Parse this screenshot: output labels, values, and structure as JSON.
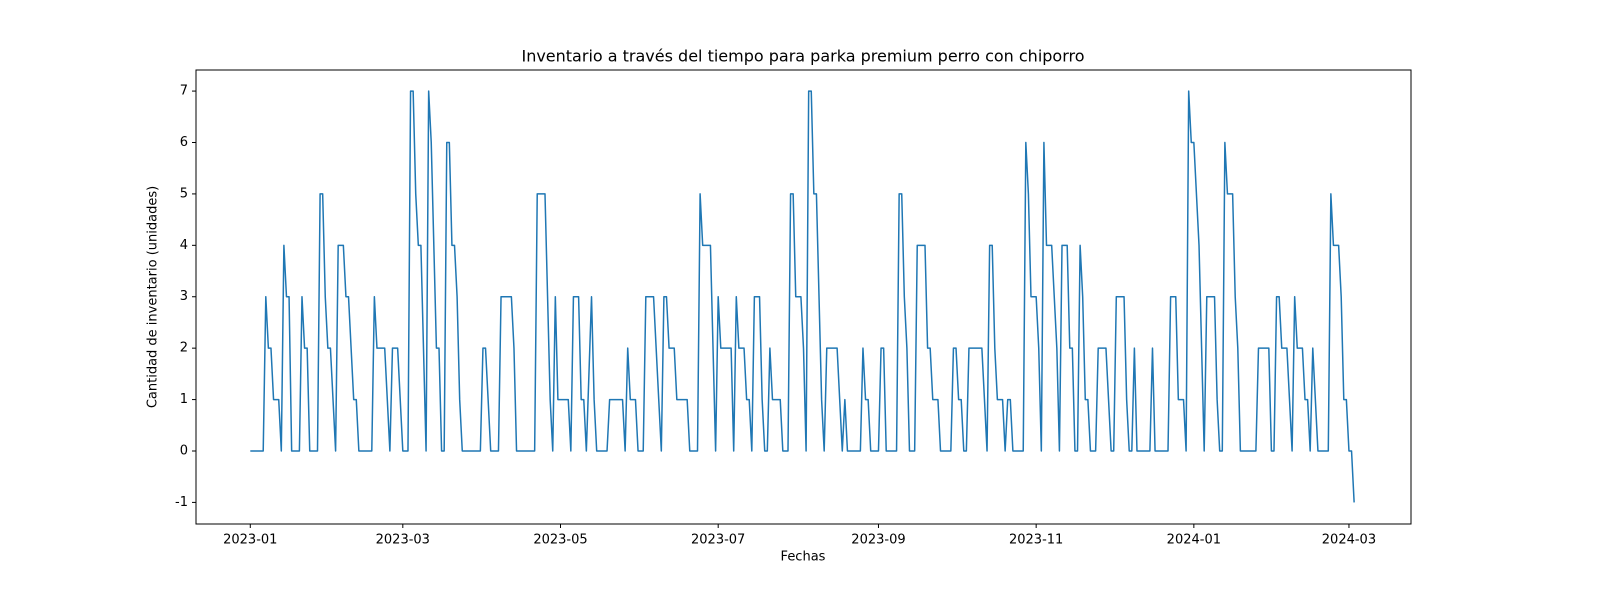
{
  "chart_data": {
    "type": "line",
    "title": "Inventario a través del tiempo para parka premium perro con chiporro",
    "xlabel": "Fechas",
    "ylabel": "Cantidad de inventario (unidades)",
    "color": "#1f77b4",
    "xlim": [
      "2022-12-11",
      "2024-03-25"
    ],
    "ylim": [
      -1.42,
      7.41
    ],
    "xticks": [
      "2023-01",
      "2023-03",
      "2023-05",
      "2023-07",
      "2023-09",
      "2023-11",
      "2024-01",
      "2024-03"
    ],
    "yticks": [
      -1,
      0,
      1,
      2,
      3,
      4,
      5,
      6,
      7
    ],
    "x": [
      "2023-01-01",
      "2023-01-06",
      "2023-01-07",
      "2023-01-08",
      "2023-01-09",
      "2023-01-10",
      "2023-01-12",
      "2023-01-13",
      "2023-01-14",
      "2023-01-15",
      "2023-01-16",
      "2023-01-17",
      "2023-01-20",
      "2023-01-21",
      "2023-01-22",
      "2023-01-23",
      "2023-01-24",
      "2023-01-27",
      "2023-01-28",
      "2023-01-29",
      "2023-01-30",
      "2023-01-31",
      "2023-02-01",
      "2023-02-03",
      "2023-02-04",
      "2023-02-06",
      "2023-02-07",
      "2023-02-08",
      "2023-02-10",
      "2023-02-11",
      "2023-02-12",
      "2023-02-17",
      "2023-02-18",
      "2023-02-19",
      "2023-02-22",
      "2023-02-24",
      "2023-02-25",
      "2023-02-27",
      "2023-03-01",
      "2023-03-03",
      "2023-03-04",
      "2023-03-05",
      "2023-03-06",
      "2023-03-07",
      "2023-03-08",
      "2023-03-10",
      "2023-03-11",
      "2023-03-12",
      "2023-03-14",
      "2023-03-15",
      "2023-03-16",
      "2023-03-17",
      "2023-03-18",
      "2023-03-19",
      "2023-03-20",
      "2023-03-21",
      "2023-03-22",
      "2023-03-23",
      "2023-03-24",
      "2023-03-31",
      "2023-04-01",
      "2023-04-02",
      "2023-04-04",
      "2023-04-07",
      "2023-04-08",
      "2023-04-12",
      "2023-04-13",
      "2023-04-14",
      "2023-04-21",
      "2023-04-22",
      "2023-04-25",
      "2023-04-27",
      "2023-04-28",
      "2023-04-29",
      "2023-04-30",
      "2023-05-04",
      "2023-05-05",
      "2023-05-06",
      "2023-05-08",
      "2023-05-09",
      "2023-05-10",
      "2023-05-11",
      "2023-05-13",
      "2023-05-14",
      "2023-05-15",
      "2023-05-19",
      "2023-05-20",
      "2023-05-25",
      "2023-05-26",
      "2023-05-27",
      "2023-05-28",
      "2023-05-30",
      "2023-05-31",
      "2023-06-02",
      "2023-06-03",
      "2023-06-06",
      "2023-06-07",
      "2023-06-08",
      "2023-06-09",
      "2023-06-10",
      "2023-06-11",
      "2023-06-12",
      "2023-06-14",
      "2023-06-15",
      "2023-06-19",
      "2023-06-20",
      "2023-06-23",
      "2023-06-24",
      "2023-06-25",
      "2023-06-28",
      "2023-06-30",
      "2023-07-01",
      "2023-07-02",
      "2023-07-06",
      "2023-07-07",
      "2023-07-08",
      "2023-07-09",
      "2023-07-11",
      "2023-07-12",
      "2023-07-13",
      "2023-07-14",
      "2023-07-15",
      "2023-07-17",
      "2023-07-18",
      "2023-07-19",
      "2023-07-20",
      "2023-07-21",
      "2023-07-22",
      "2023-07-25",
      "2023-07-26",
      "2023-07-28",
      "2023-07-29",
      "2023-07-30",
      "2023-07-31",
      "2023-08-02",
      "2023-08-03",
      "2023-08-04",
      "2023-08-05",
      "2023-08-06",
      "2023-08-07",
      "2023-08-08",
      "2023-08-10",
      "2023-08-11",
      "2023-08-12",
      "2023-08-16",
      "2023-08-17",
      "2023-08-18",
      "2023-08-19",
      "2023-08-20",
      "2023-08-25",
      "2023-08-26",
      "2023-08-27",
      "2023-08-28",
      "2023-08-29",
      "2023-09-01",
      "2023-09-02",
      "2023-09-03",
      "2023-09-04",
      "2023-09-08",
      "2023-09-09",
      "2023-09-10",
      "2023-09-11",
      "2023-09-12",
      "2023-09-13",
      "2023-09-15",
      "2023-09-16",
      "2023-09-19",
      "2023-09-20",
      "2023-09-21",
      "2023-09-22",
      "2023-09-24",
      "2023-09-25",
      "2023-09-29",
      "2023-09-30",
      "2023-10-01",
      "2023-10-02",
      "2023-10-03",
      "2023-10-04",
      "2023-10-05",
      "2023-10-06",
      "2023-10-11",
      "2023-10-12",
      "2023-10-13",
      "2023-10-14",
      "2023-10-15",
      "2023-10-16",
      "2023-10-17",
      "2023-10-19",
      "2023-10-20",
      "2023-10-21",
      "2023-10-22",
      "2023-10-23",
      "2023-10-27",
      "2023-10-28",
      "2023-10-29",
      "2023-10-30",
      "2023-11-01",
      "2023-11-02",
      "2023-11-03",
      "2023-11-04",
      "2023-11-05",
      "2023-11-07",
      "2023-11-09",
      "2023-11-10",
      "2023-11-11",
      "2023-11-13",
      "2023-11-14",
      "2023-11-15",
      "2023-11-16",
      "2023-11-17",
      "2023-11-18",
      "2023-11-19",
      "2023-11-20",
      "2023-11-21",
      "2023-11-22",
      "2023-11-24",
      "2023-11-25",
      "2023-11-28",
      "2023-11-29",
      "2023-11-30",
      "2023-12-01",
      "2023-12-02",
      "2023-12-05",
      "2023-12-06",
      "2023-12-07",
      "2023-12-08",
      "2023-12-09",
      "2023-12-10",
      "2023-12-15",
      "2023-12-16",
      "2023-12-17",
      "2023-12-22",
      "2023-12-23",
      "2023-12-25",
      "2023-12-26",
      "2023-12-28",
      "2023-12-29",
      "2023-12-30",
      "2023-12-31",
      "2024-01-01",
      "2024-01-03",
      "2024-01-04",
      "2024-01-05",
      "2024-01-06",
      "2024-01-09",
      "2024-01-10",
      "2024-01-11",
      "2024-01-12",
      "2024-01-13",
      "2024-01-14",
      "2024-01-16",
      "2024-01-17",
      "2024-01-18",
      "2024-01-19",
      "2024-01-25",
      "2024-01-26",
      "2024-01-30",
      "2024-01-31",
      "2024-02-01",
      "2024-02-02",
      "2024-02-03",
      "2024-02-04",
      "2024-02-06",
      "2024-02-08",
      "2024-02-09",
      "2024-02-10",
      "2024-02-12",
      "2024-02-13",
      "2024-02-14",
      "2024-02-15",
      "2024-02-16",
      "2024-02-18",
      "2024-02-22",
      "2024-02-23",
      "2024-02-24",
      "2024-02-26",
      "2024-02-27",
      "2024-02-28",
      "2024-02-29",
      "2024-03-01",
      "2024-03-02",
      "2024-03-03"
    ],
    "values": [
      0,
      0,
      3,
      2,
      2,
      1,
      1,
      0,
      4,
      3,
      3,
      0,
      0,
      3,
      2,
      2,
      0,
      0,
      5,
      5,
      3,
      2,
      2,
      0,
      4,
      4,
      3,
      3,
      1,
      1,
      0,
      0,
      3,
      2,
      2,
      0,
      2,
      2,
      0,
      0,
      7,
      7,
      5,
      4,
      4,
      0,
      7,
      6,
      2,
      2,
      0,
      0,
      6,
      6,
      4,
      4,
      3,
      1,
      0,
      0,
      2,
      2,
      0,
      0,
      3,
      3,
      2,
      0,
      0,
      5,
      5,
      1,
      0,
      3,
      1,
      1,
      0,
      3,
      3,
      1,
      1,
      0,
      3,
      1,
      0,
      0,
      1,
      1,
      0,
      2,
      1,
      1,
      0,
      0,
      3,
      3,
      2,
      1,
      0,
      3,
      3,
      2,
      2,
      1,
      1,
      0,
      0,
      5,
      4,
      4,
      0,
      3,
      2,
      2,
      0,
      3,
      2,
      2,
      1,
      1,
      0,
      3,
      3,
      1,
      0,
      0,
      2,
      1,
      1,
      0,
      0,
      5,
      5,
      3,
      3,
      2,
      0,
      7,
      7,
      5,
      5,
      1,
      0,
      2,
      2,
      1,
      0,
      1,
      0,
      0,
      2,
      1,
      1,
      0,
      0,
      2,
      2,
      0,
      0,
      5,
      5,
      3,
      2,
      0,
      0,
      4,
      4,
      2,
      2,
      1,
      1,
      0,
      0,
      2,
      2,
      1,
      1,
      0,
      0,
      2,
      2,
      1,
      0,
      4,
      4,
      2,
      1,
      1,
      0,
      1,
      1,
      0,
      0,
      6,
      5,
      3,
      3,
      2,
      0,
      6,
      4,
      4,
      2,
      0,
      4,
      4,
      2,
      2,
      0,
      0,
      4,
      3,
      1,
      1,
      0,
      0,
      2,
      2,
      1,
      0,
      0,
      3,
      3,
      1,
      0,
      0,
      2,
      0,
      0,
      2,
      0,
      0,
      3,
      3,
      1,
      1,
      0,
      7,
      6,
      6,
      4,
      2,
      0,
      3,
      3,
      1,
      0,
      0,
      6,
      5,
      5,
      3,
      2,
      0,
      0,
      2,
      2,
      0,
      0,
      3,
      3,
      2,
      2,
      0,
      3,
      2,
      2,
      1,
      1,
      0,
      2,
      0,
      0,
      5,
      4,
      4,
      3,
      1,
      1,
      0,
      0,
      -1
    ]
  }
}
